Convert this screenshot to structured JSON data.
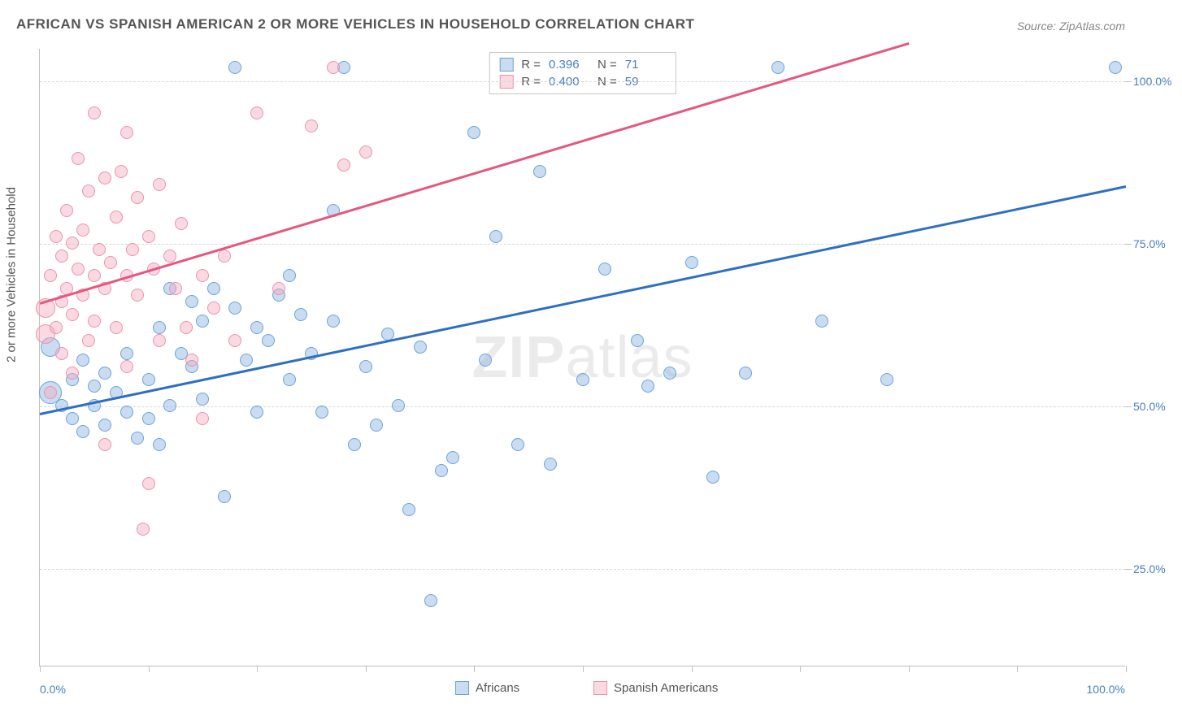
{
  "title": "AFRICAN VS SPANISH AMERICAN 2 OR MORE VEHICLES IN HOUSEHOLD CORRELATION CHART",
  "source": "Source: ZipAtlas.com",
  "watermark_part1": "ZIP",
  "watermark_part2": "atlas",
  "ylabel": "2 or more Vehicles in Household",
  "chart": {
    "type": "scatter",
    "xlim": [
      0,
      100
    ],
    "ylim": [
      10,
      105
    ],
    "grid_y": [
      25,
      50,
      75,
      100
    ],
    "grid_color": "#d8d8d8",
    "background_color": "#ffffff",
    "axis_line_color": "#c0c0c0",
    "x_ticks": [
      0,
      10,
      20,
      30,
      40,
      50,
      60,
      70,
      80,
      90,
      100
    ],
    "x_tick_labels": [
      {
        "x": 0,
        "label": "0.0%"
      },
      {
        "x": 100,
        "label": "100.0%"
      }
    ],
    "y_tick_labels": [
      {
        "y": 25,
        "label": "25.0%"
      },
      {
        "y": 50,
        "label": "50.0%"
      },
      {
        "y": 75,
        "label": "75.0%"
      },
      {
        "y": 100,
        "label": "100.0%"
      }
    ],
    "series": [
      {
        "name": "Africans",
        "fill": "rgba(135,178,226,0.45)",
        "stroke": "#6ea3d8",
        "trend_color": "#2f6fc2",
        "trend": {
          "x1": 0,
          "y1": 49,
          "x2": 100,
          "y2": 84
        },
        "R": "0.396",
        "N": "71",
        "default_r": 8,
        "points": [
          {
            "x": 1,
            "y": 52,
            "r": 14
          },
          {
            "x": 1,
            "y": 59,
            "r": 12
          },
          {
            "x": 2,
            "y": 50
          },
          {
            "x": 3,
            "y": 54
          },
          {
            "x": 3,
            "y": 48
          },
          {
            "x": 4,
            "y": 46
          },
          {
            "x": 4,
            "y": 57
          },
          {
            "x": 5,
            "y": 53
          },
          {
            "x": 5,
            "y": 50
          },
          {
            "x": 6,
            "y": 55
          },
          {
            "x": 6,
            "y": 47
          },
          {
            "x": 7,
            "y": 52
          },
          {
            "x": 8,
            "y": 49
          },
          {
            "x": 8,
            "y": 58
          },
          {
            "x": 9,
            "y": 45
          },
          {
            "x": 10,
            "y": 54
          },
          {
            "x": 10,
            "y": 48
          },
          {
            "x": 11,
            "y": 62
          },
          {
            "x": 11,
            "y": 44
          },
          {
            "x": 12,
            "y": 50
          },
          {
            "x": 12,
            "y": 68
          },
          {
            "x": 13,
            "y": 58
          },
          {
            "x": 14,
            "y": 56
          },
          {
            "x": 14,
            "y": 66
          },
          {
            "x": 15,
            "y": 51
          },
          {
            "x": 15,
            "y": 63
          },
          {
            "x": 16,
            "y": 68
          },
          {
            "x": 17,
            "y": 36
          },
          {
            "x": 18,
            "y": 65
          },
          {
            "x": 18,
            "y": 102
          },
          {
            "x": 19,
            "y": 57
          },
          {
            "x": 20,
            "y": 49
          },
          {
            "x": 20,
            "y": 62
          },
          {
            "x": 21,
            "y": 60
          },
          {
            "x": 22,
            "y": 67
          },
          {
            "x": 23,
            "y": 70
          },
          {
            "x": 23,
            "y": 54
          },
          {
            "x": 24,
            "y": 64
          },
          {
            "x": 25,
            "y": 58
          },
          {
            "x": 26,
            "y": 49
          },
          {
            "x": 27,
            "y": 80
          },
          {
            "x": 27,
            "y": 63
          },
          {
            "x": 28,
            "y": 102
          },
          {
            "x": 29,
            "y": 44
          },
          {
            "x": 30,
            "y": 56
          },
          {
            "x": 31,
            "y": 47
          },
          {
            "x": 32,
            "y": 61
          },
          {
            "x": 33,
            "y": 50
          },
          {
            "x": 34,
            "y": 34
          },
          {
            "x": 35,
            "y": 59
          },
          {
            "x": 36,
            "y": 20
          },
          {
            "x": 37,
            "y": 40
          },
          {
            "x": 38,
            "y": 42
          },
          {
            "x": 40,
            "y": 92
          },
          {
            "x": 41,
            "y": 57
          },
          {
            "x": 42,
            "y": 76
          },
          {
            "x": 44,
            "y": 44
          },
          {
            "x": 46,
            "y": 86
          },
          {
            "x": 47,
            "y": 41
          },
          {
            "x": 50,
            "y": 54
          },
          {
            "x": 52,
            "y": 71
          },
          {
            "x": 55,
            "y": 60
          },
          {
            "x": 56,
            "y": 53
          },
          {
            "x": 58,
            "y": 55
          },
          {
            "x": 60,
            "y": 72
          },
          {
            "x": 62,
            "y": 39
          },
          {
            "x": 65,
            "y": 55
          },
          {
            "x": 68,
            "y": 102
          },
          {
            "x": 72,
            "y": 63
          },
          {
            "x": 78,
            "y": 54
          },
          {
            "x": 99,
            "y": 102
          }
        ]
      },
      {
        "name": "Spanish Americans",
        "fill": "rgba(244,170,190,0.45)",
        "stroke": "#e994ad",
        "trend_color": "#e5577e",
        "trend": {
          "x1": 0,
          "y1": 66,
          "x2": 80,
          "y2": 106
        },
        "R": "0.400",
        "N": "59",
        "default_r": 8,
        "points": [
          {
            "x": 0.5,
            "y": 61,
            "r": 12
          },
          {
            "x": 0.5,
            "y": 65,
            "r": 12
          },
          {
            "x": 1,
            "y": 52
          },
          {
            "x": 1,
            "y": 70
          },
          {
            "x": 1.5,
            "y": 76
          },
          {
            "x": 1.5,
            "y": 62
          },
          {
            "x": 2,
            "y": 73
          },
          {
            "x": 2,
            "y": 66
          },
          {
            "x": 2,
            "y": 58
          },
          {
            "x": 2.5,
            "y": 80
          },
          {
            "x": 2.5,
            "y": 68
          },
          {
            "x": 3,
            "y": 64
          },
          {
            "x": 3,
            "y": 75
          },
          {
            "x": 3,
            "y": 55
          },
          {
            "x": 3.5,
            "y": 71
          },
          {
            "x": 3.5,
            "y": 88
          },
          {
            "x": 4,
            "y": 67
          },
          {
            "x": 4,
            "y": 77
          },
          {
            "x": 4.5,
            "y": 60
          },
          {
            "x": 4.5,
            "y": 83
          },
          {
            "x": 5,
            "y": 70
          },
          {
            "x": 5,
            "y": 95
          },
          {
            "x": 5,
            "y": 63
          },
          {
            "x": 5.5,
            "y": 74
          },
          {
            "x": 6,
            "y": 85
          },
          {
            "x": 6,
            "y": 44
          },
          {
            "x": 6,
            "y": 68
          },
          {
            "x": 6.5,
            "y": 72
          },
          {
            "x": 7,
            "y": 79
          },
          {
            "x": 7,
            "y": 62
          },
          {
            "x": 7.5,
            "y": 86
          },
          {
            "x": 8,
            "y": 70
          },
          {
            "x": 8,
            "y": 92
          },
          {
            "x": 8,
            "y": 56
          },
          {
            "x": 8.5,
            "y": 74
          },
          {
            "x": 9,
            "y": 67
          },
          {
            "x": 9,
            "y": 82
          },
          {
            "x": 9.5,
            "y": 31
          },
          {
            "x": 10,
            "y": 76
          },
          {
            "x": 10,
            "y": 38
          },
          {
            "x": 10.5,
            "y": 71
          },
          {
            "x": 11,
            "y": 84
          },
          {
            "x": 11,
            "y": 60
          },
          {
            "x": 12,
            "y": 73
          },
          {
            "x": 12.5,
            "y": 68
          },
          {
            "x": 13,
            "y": 78
          },
          {
            "x": 13.5,
            "y": 62
          },
          {
            "x": 14,
            "y": 57
          },
          {
            "x": 15,
            "y": 70
          },
          {
            "x": 15,
            "y": 48
          },
          {
            "x": 16,
            "y": 65
          },
          {
            "x": 17,
            "y": 73
          },
          {
            "x": 18,
            "y": 60
          },
          {
            "x": 20,
            "y": 95
          },
          {
            "x": 22,
            "y": 68
          },
          {
            "x": 25,
            "y": 93
          },
          {
            "x": 27,
            "y": 102
          },
          {
            "x": 28,
            "y": 87
          },
          {
            "x": 30,
            "y": 89
          }
        ]
      }
    ],
    "stats_box": {
      "r_label": "R  =",
      "n_label": "N  ="
    }
  }
}
